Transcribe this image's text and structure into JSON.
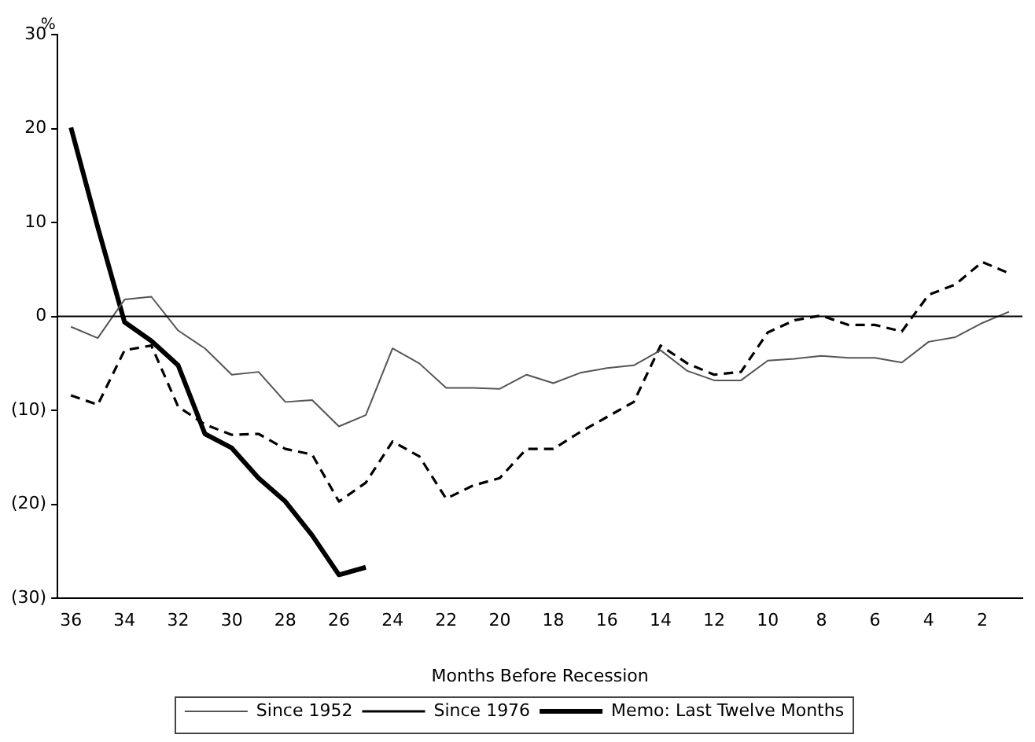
{
  "chart_data": {
    "type": "line",
    "xlabel": "Months Before Recession",
    "ylabel": "%",
    "categories": [
      "36",
      null,
      "34",
      null,
      "32",
      null,
      "30",
      null,
      "28",
      null,
      "26",
      null,
      "24",
      null,
      "22",
      null,
      "20",
      null,
      "18",
      null,
      "16",
      null,
      "14",
      null,
      "12",
      null,
      "10",
      null,
      "8",
      null,
      "6",
      null,
      "4",
      null,
      "2",
      null
    ],
    "series": [
      {
        "name": "Since 1952",
        "color": "#555555",
        "line_style": "solid",
        "values": [
          -1.1,
          -2.3,
          1.8,
          2.1,
          -1.5,
          -3.4,
          -6.2,
          -5.9,
          -9.1,
          -8.9,
          -11.7,
          -10.5,
          -3.4,
          -5.0,
          -7.6,
          -7.6,
          -7.7,
          -6.2,
          -7.1,
          -6.0,
          -5.5,
          -5.2,
          -3.6,
          -5.8,
          -6.8,
          -6.8,
          -4.7,
          -4.5,
          -4.2,
          -4.4,
          -4.4,
          -4.9,
          -2.7,
          -2.2,
          -0.7,
          0.5
        ]
      },
      {
        "name": "Since 1976",
        "color": "#000000",
        "line_style": "dashed",
        "values": [
          -8.4,
          -9.4,
          -3.6,
          -3.1,
          -9.6,
          -11.5,
          -12.6,
          -12.5,
          -14.1,
          -14.7,
          -19.7,
          -17.7,
          -13.3,
          -14.9,
          -19.4,
          -18.0,
          -17.2,
          -14.1,
          -14.1,
          -12.3,
          -10.7,
          -9.1,
          -3.1,
          -5.0,
          -6.2,
          -5.9,
          -1.7,
          -0.4,
          0.1,
          -0.9,
          -0.9,
          -1.6,
          2.3,
          3.4,
          5.8,
          4.6
        ]
      },
      {
        "name": "Memo: Last Twelve Months",
        "color": "#000000",
        "line_style": "solid",
        "values": [
          20.1,
          9.5,
          -0.6,
          -2.6,
          -5.2,
          -12.5,
          -14.0,
          -17.2,
          -19.7,
          -23.3,
          -27.5,
          -26.7,
          null,
          null,
          null,
          null,
          null,
          null,
          null,
          null,
          null,
          null,
          null,
          null,
          null,
          null,
          null,
          null,
          null,
          null,
          null,
          null,
          null,
          null,
          null,
          null
        ]
      }
    ],
    "ylim": [
      -30,
      30
    ],
    "yticks": [
      {
        "value": -30,
        "label": "(30)"
      },
      {
        "value": -20,
        "label": "(20)"
      },
      {
        "value": -10,
        "label": "(10)"
      },
      0,
      10,
      20,
      30
    ],
    "ref_lines": [
      {
        "axis": "y",
        "value": 0,
        "color": "#000000"
      }
    ],
    "grid": false,
    "legend": "bottom",
    "marker": "none"
  }
}
